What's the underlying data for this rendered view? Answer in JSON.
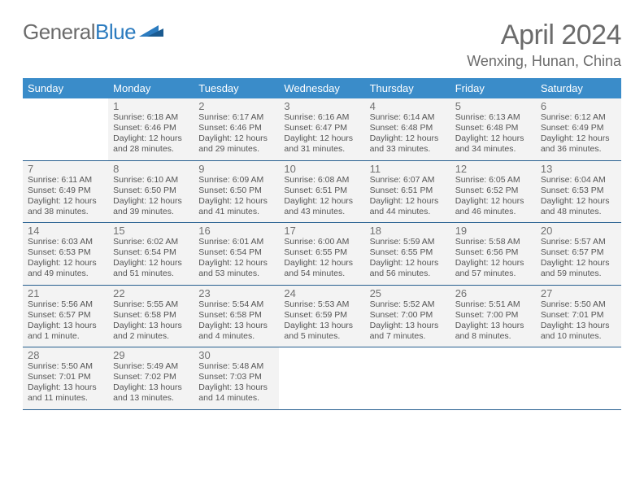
{
  "brand": {
    "part1": "General",
    "part2": "Blue"
  },
  "title": "April 2024",
  "location": "Wenxing, Hunan, China",
  "colors": {
    "header_bg": "#3a8cc9",
    "week_border": "#286090",
    "cell_bg": "#f3f3f3",
    "text_gray": "#6b6b6b"
  },
  "weekdays": [
    "Sunday",
    "Monday",
    "Tuesday",
    "Wednesday",
    "Thursday",
    "Friday",
    "Saturday"
  ],
  "weeks": [
    [
      null,
      {
        "n": "1",
        "sr": "Sunrise: 6:18 AM",
        "ss": "Sunset: 6:46 PM",
        "d1": "Daylight: 12 hours",
        "d2": "and 28 minutes."
      },
      {
        "n": "2",
        "sr": "Sunrise: 6:17 AM",
        "ss": "Sunset: 6:46 PM",
        "d1": "Daylight: 12 hours",
        "d2": "and 29 minutes."
      },
      {
        "n": "3",
        "sr": "Sunrise: 6:16 AM",
        "ss": "Sunset: 6:47 PM",
        "d1": "Daylight: 12 hours",
        "d2": "and 31 minutes."
      },
      {
        "n": "4",
        "sr": "Sunrise: 6:14 AM",
        "ss": "Sunset: 6:48 PM",
        "d1": "Daylight: 12 hours",
        "d2": "and 33 minutes."
      },
      {
        "n": "5",
        "sr": "Sunrise: 6:13 AM",
        "ss": "Sunset: 6:48 PM",
        "d1": "Daylight: 12 hours",
        "d2": "and 34 minutes."
      },
      {
        "n": "6",
        "sr": "Sunrise: 6:12 AM",
        "ss": "Sunset: 6:49 PM",
        "d1": "Daylight: 12 hours",
        "d2": "and 36 minutes."
      }
    ],
    [
      {
        "n": "7",
        "sr": "Sunrise: 6:11 AM",
        "ss": "Sunset: 6:49 PM",
        "d1": "Daylight: 12 hours",
        "d2": "and 38 minutes."
      },
      {
        "n": "8",
        "sr": "Sunrise: 6:10 AM",
        "ss": "Sunset: 6:50 PM",
        "d1": "Daylight: 12 hours",
        "d2": "and 39 minutes."
      },
      {
        "n": "9",
        "sr": "Sunrise: 6:09 AM",
        "ss": "Sunset: 6:50 PM",
        "d1": "Daylight: 12 hours",
        "d2": "and 41 minutes."
      },
      {
        "n": "10",
        "sr": "Sunrise: 6:08 AM",
        "ss": "Sunset: 6:51 PM",
        "d1": "Daylight: 12 hours",
        "d2": "and 43 minutes."
      },
      {
        "n": "11",
        "sr": "Sunrise: 6:07 AM",
        "ss": "Sunset: 6:51 PM",
        "d1": "Daylight: 12 hours",
        "d2": "and 44 minutes."
      },
      {
        "n": "12",
        "sr": "Sunrise: 6:05 AM",
        "ss": "Sunset: 6:52 PM",
        "d1": "Daylight: 12 hours",
        "d2": "and 46 minutes."
      },
      {
        "n": "13",
        "sr": "Sunrise: 6:04 AM",
        "ss": "Sunset: 6:53 PM",
        "d1": "Daylight: 12 hours",
        "d2": "and 48 minutes."
      }
    ],
    [
      {
        "n": "14",
        "sr": "Sunrise: 6:03 AM",
        "ss": "Sunset: 6:53 PM",
        "d1": "Daylight: 12 hours",
        "d2": "and 49 minutes."
      },
      {
        "n": "15",
        "sr": "Sunrise: 6:02 AM",
        "ss": "Sunset: 6:54 PM",
        "d1": "Daylight: 12 hours",
        "d2": "and 51 minutes."
      },
      {
        "n": "16",
        "sr": "Sunrise: 6:01 AM",
        "ss": "Sunset: 6:54 PM",
        "d1": "Daylight: 12 hours",
        "d2": "and 53 minutes."
      },
      {
        "n": "17",
        "sr": "Sunrise: 6:00 AM",
        "ss": "Sunset: 6:55 PM",
        "d1": "Daylight: 12 hours",
        "d2": "and 54 minutes."
      },
      {
        "n": "18",
        "sr": "Sunrise: 5:59 AM",
        "ss": "Sunset: 6:55 PM",
        "d1": "Daylight: 12 hours",
        "d2": "and 56 minutes."
      },
      {
        "n": "19",
        "sr": "Sunrise: 5:58 AM",
        "ss": "Sunset: 6:56 PM",
        "d1": "Daylight: 12 hours",
        "d2": "and 57 minutes."
      },
      {
        "n": "20",
        "sr": "Sunrise: 5:57 AM",
        "ss": "Sunset: 6:57 PM",
        "d1": "Daylight: 12 hours",
        "d2": "and 59 minutes."
      }
    ],
    [
      {
        "n": "21",
        "sr": "Sunrise: 5:56 AM",
        "ss": "Sunset: 6:57 PM",
        "d1": "Daylight: 13 hours",
        "d2": "and 1 minute."
      },
      {
        "n": "22",
        "sr": "Sunrise: 5:55 AM",
        "ss": "Sunset: 6:58 PM",
        "d1": "Daylight: 13 hours",
        "d2": "and 2 minutes."
      },
      {
        "n": "23",
        "sr": "Sunrise: 5:54 AM",
        "ss": "Sunset: 6:58 PM",
        "d1": "Daylight: 13 hours",
        "d2": "and 4 minutes."
      },
      {
        "n": "24",
        "sr": "Sunrise: 5:53 AM",
        "ss": "Sunset: 6:59 PM",
        "d1": "Daylight: 13 hours",
        "d2": "and 5 minutes."
      },
      {
        "n": "25",
        "sr": "Sunrise: 5:52 AM",
        "ss": "Sunset: 7:00 PM",
        "d1": "Daylight: 13 hours",
        "d2": "and 7 minutes."
      },
      {
        "n": "26",
        "sr": "Sunrise: 5:51 AM",
        "ss": "Sunset: 7:00 PM",
        "d1": "Daylight: 13 hours",
        "d2": "and 8 minutes."
      },
      {
        "n": "27",
        "sr": "Sunrise: 5:50 AM",
        "ss": "Sunset: 7:01 PM",
        "d1": "Daylight: 13 hours",
        "d2": "and 10 minutes."
      }
    ],
    [
      {
        "n": "28",
        "sr": "Sunrise: 5:50 AM",
        "ss": "Sunset: 7:01 PM",
        "d1": "Daylight: 13 hours",
        "d2": "and 11 minutes."
      },
      {
        "n": "29",
        "sr": "Sunrise: 5:49 AM",
        "ss": "Sunset: 7:02 PM",
        "d1": "Daylight: 13 hours",
        "d2": "and 13 minutes."
      },
      {
        "n": "30",
        "sr": "Sunrise: 5:48 AM",
        "ss": "Sunset: 7:03 PM",
        "d1": "Daylight: 13 hours",
        "d2": "and 14 minutes."
      },
      null,
      null,
      null,
      null
    ]
  ]
}
